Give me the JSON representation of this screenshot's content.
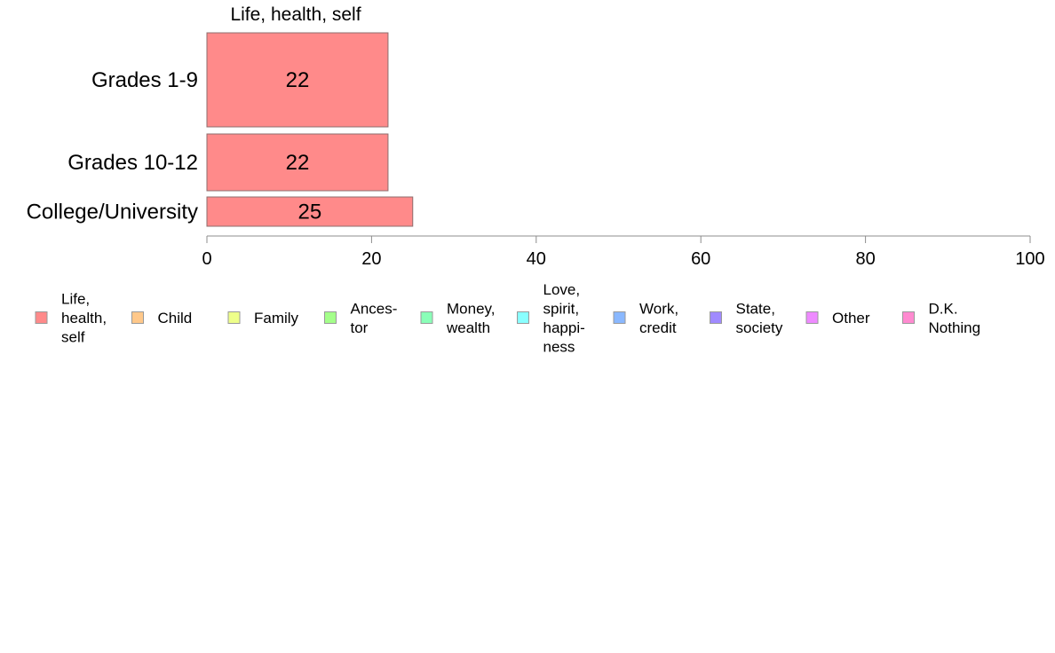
{
  "chart_data": {
    "type": "bar",
    "orientation": "horizontal",
    "title": "Life, health, self",
    "categories": [
      "Grades 1-9",
      "Grades 10-12",
      "College/University"
    ],
    "series": [
      {
        "name": "Life, health, self",
        "values": [
          22,
          22,
          25
        ],
        "color": "#ff8a8a"
      }
    ],
    "data_labels": [
      "22",
      "22",
      "25"
    ],
    "xlim": [
      0,
      100
    ],
    "x_ticks": [
      0,
      20,
      40,
      60,
      80,
      100
    ],
    "x_tick_labels": [
      "0",
      "20",
      "40",
      "60",
      "80",
      "100"
    ],
    "xlabel": "",
    "ylabel": "",
    "grid": false,
    "legend_position": "bottom",
    "legend": [
      {
        "label": "Life, health, self",
        "lines": [
          "Life,",
          "health,",
          "self"
        ],
        "color": "#ff8a8a"
      },
      {
        "label": "Child",
        "lines": [
          "Child"
        ],
        "color": "#ffc88a"
      },
      {
        "label": "Family",
        "lines": [
          "Family"
        ],
        "color": "#eeff8a"
      },
      {
        "label": "Ancestor",
        "lines": [
          "Ances-",
          "tor"
        ],
        "color": "#a4ff8a"
      },
      {
        "label": "Money, wealth",
        "lines": [
          "Money,",
          "wealth"
        ],
        "color": "#8affb8"
      },
      {
        "label": "Love, spirit, happiness",
        "lines": [
          "Love,",
          "spirit,",
          "happi-",
          "ness"
        ],
        "color": "#8affff"
      },
      {
        "label": "Work, credit",
        "lines": [
          "Work,",
          "credit"
        ],
        "color": "#8ab8ff"
      },
      {
        "label": "State, society",
        "lines": [
          "State,",
          "society"
        ],
        "color": "#a08aff"
      },
      {
        "label": "Other",
        "lines": [
          "Other"
        ],
        "color": "#ee8aff"
      },
      {
        "label": "D.K. Nothing",
        "lines": [
          "D.K.",
          "Nothing"
        ],
        "color": "#ff8ad0"
      }
    ]
  }
}
